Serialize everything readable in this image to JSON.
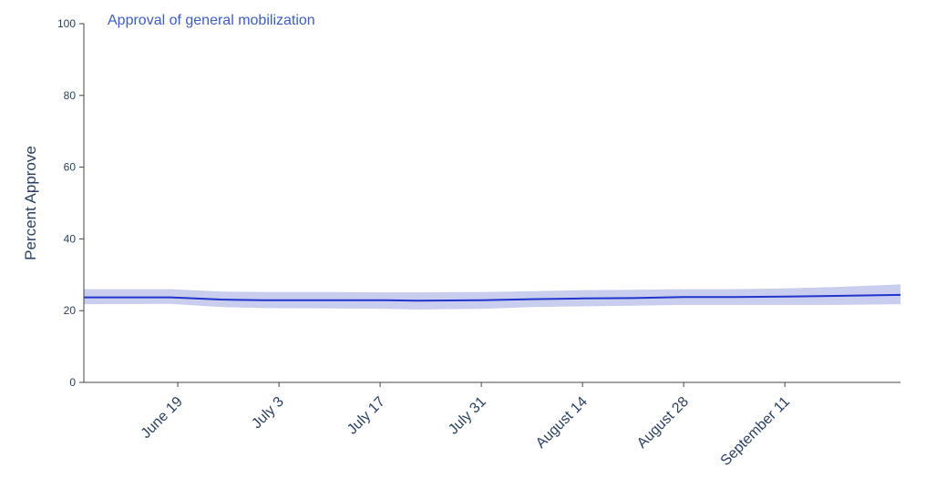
{
  "chart_data": {
    "type": "line",
    "title": "Approval of general mobilization",
    "xlabel": "",
    "ylabel": "Percent Approve",
    "ylim": [
      0,
      100
    ],
    "y_ticks": [
      0,
      20,
      40,
      60,
      80,
      100
    ],
    "xlim": [
      "2023-06-06",
      "2023-09-27"
    ],
    "x_ticks": [
      {
        "date": "2023-06-19",
        "label": "June 19"
      },
      {
        "date": "2023-07-03",
        "label": "July 3"
      },
      {
        "date": "2023-07-17",
        "label": "July 17"
      },
      {
        "date": "2023-07-31",
        "label": "July 31"
      },
      {
        "date": "2023-08-14",
        "label": "August 14"
      },
      {
        "date": "2023-08-28",
        "label": "August 28"
      },
      {
        "date": "2023-09-11",
        "label": "September 11"
      }
    ],
    "grid": false,
    "series": [
      {
        "color": "#2035c9",
        "band_color": "#c9cdee",
        "points": [
          {
            "x": "2023-06-06",
            "y": 23.7,
            "lower": 21.8,
            "upper": 26.0
          },
          {
            "x": "2023-06-18",
            "y": 23.7,
            "lower": 21.9,
            "upper": 26.0
          },
          {
            "x": "2023-06-25",
            "y": 23.1,
            "lower": 21.0,
            "upper": 25.3
          },
          {
            "x": "2023-07-01",
            "y": 22.9,
            "lower": 20.7,
            "upper": 25.2
          },
          {
            "x": "2023-07-10",
            "y": 22.9,
            "lower": 20.6,
            "upper": 25.2
          },
          {
            "x": "2023-07-18",
            "y": 22.9,
            "lower": 20.5,
            "upper": 25.1
          },
          {
            "x": "2023-07-22",
            "y": 22.8,
            "lower": 20.3,
            "upper": 25.1
          },
          {
            "x": "2023-07-31",
            "y": 22.9,
            "lower": 20.5,
            "upper": 25.2
          },
          {
            "x": "2023-08-07",
            "y": 23.2,
            "lower": 21.0,
            "upper": 25.4
          },
          {
            "x": "2023-08-14",
            "y": 23.4,
            "lower": 21.2,
            "upper": 25.7
          },
          {
            "x": "2023-08-21",
            "y": 23.5,
            "lower": 21.4,
            "upper": 25.8
          },
          {
            "x": "2023-08-28",
            "y": 23.8,
            "lower": 21.6,
            "upper": 26.0
          },
          {
            "x": "2023-09-04",
            "y": 23.8,
            "lower": 21.6,
            "upper": 26.0
          },
          {
            "x": "2023-09-11",
            "y": 23.9,
            "lower": 21.6,
            "upper": 26.2
          },
          {
            "x": "2023-09-18",
            "y": 24.1,
            "lower": 21.6,
            "upper": 26.6
          },
          {
            "x": "2023-09-27",
            "y": 24.4,
            "lower": 21.8,
            "upper": 27.3
          }
        ]
      }
    ]
  }
}
